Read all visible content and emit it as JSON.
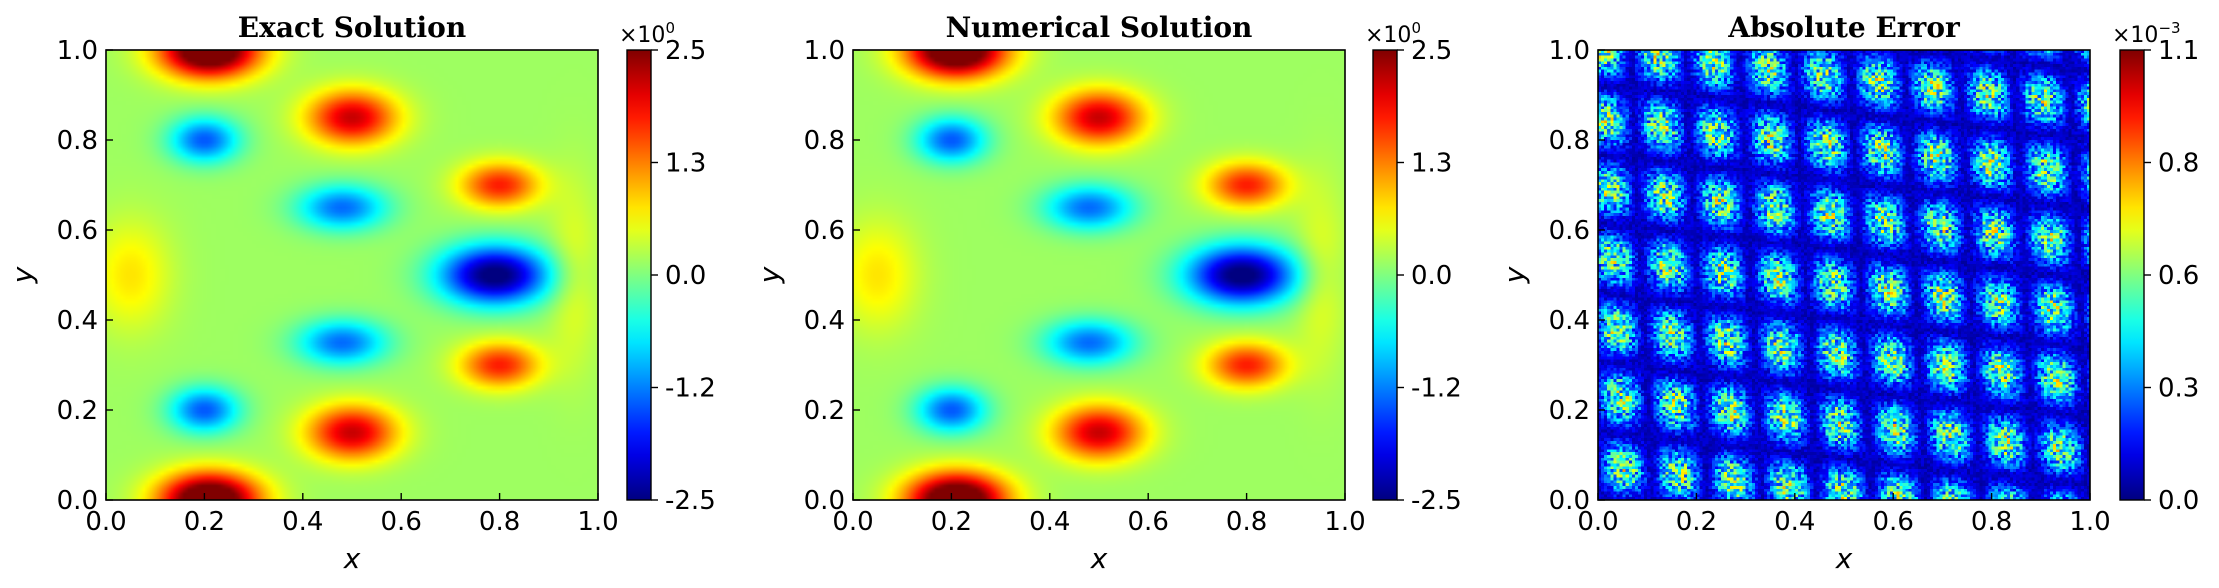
{
  "chart_data": [
    {
      "type": "heatmap",
      "title": "Exact Solution",
      "xlabel": "x",
      "ylabel": "y",
      "xlim": [
        0.0,
        1.0
      ],
      "ylim": [
        0.0,
        1.0
      ],
      "xticks": [
        "0.0",
        "0.2",
        "0.4",
        "0.6",
        "0.8",
        "1.0"
      ],
      "yticks": [
        "0.0",
        "0.2",
        "0.4",
        "0.6",
        "0.8",
        "1.0"
      ],
      "colorbar": {
        "ticks": [
          "-2.5",
          "-1.2",
          "0.0",
          "1.3",
          "2.5"
        ],
        "range": [
          -2.5,
          2.5
        ],
        "exponent_base": "×10",
        "exponent_power": "0",
        "colormap": "jet"
      },
      "field": "smooth"
    },
    {
      "type": "heatmap",
      "title": "Numerical Solution",
      "xlabel": "x",
      "ylabel": "y",
      "xlim": [
        0.0,
        1.0
      ],
      "ylim": [
        0.0,
        1.0
      ],
      "xticks": [
        "0.0",
        "0.2",
        "0.4",
        "0.6",
        "0.8",
        "1.0"
      ],
      "yticks": [
        "0.0",
        "0.2",
        "0.4",
        "0.6",
        "0.8",
        "1.0"
      ],
      "colorbar": {
        "ticks": [
          "-2.5",
          "-1.2",
          "0.0",
          "1.3",
          "2.5"
        ],
        "range": [
          -2.5,
          2.5
        ],
        "exponent_base": "×10",
        "exponent_power": "0",
        "colormap": "jet"
      },
      "field": "smooth"
    },
    {
      "type": "heatmap",
      "title": "Absolute Error",
      "xlabel": "x",
      "ylabel": "y",
      "xlim": [
        0.0,
        1.0
      ],
      "ylim": [
        0.0,
        1.0
      ],
      "xticks": [
        "0.0",
        "0.2",
        "0.4",
        "0.6",
        "0.8",
        "1.0"
      ],
      "yticks": [
        "0.0",
        "0.2",
        "0.4",
        "0.6",
        "0.8",
        "1.0"
      ],
      "colorbar": {
        "ticks": [
          "0.0",
          "0.3",
          "0.6",
          "0.8",
          "1.1"
        ],
        "range": [
          0.0,
          1.1
        ],
        "exponent_base": "×10",
        "exponent_power": "−3",
        "colormap": "jet"
      },
      "field": "noisy"
    }
  ]
}
